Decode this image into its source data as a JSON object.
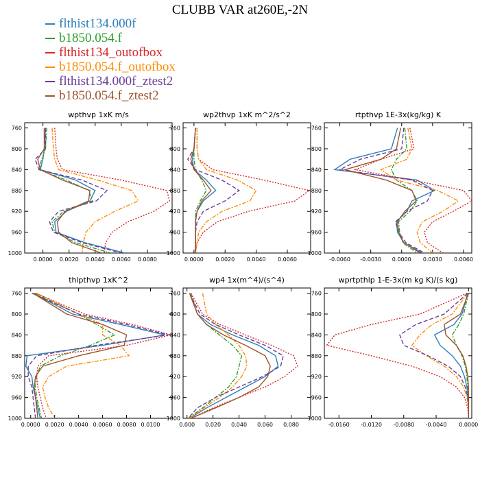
{
  "figure": {
    "title": "CLUBB VAR at260E,-2N",
    "legend": [
      {
        "label": "flthist134.000f",
        "color": "#2f7fb8",
        "dash": "solid"
      },
      {
        "label": "b1850.054.f",
        "color": "#2ca02c",
        "dash": "dashdot"
      },
      {
        "label": "flthist134_outofbox",
        "color": "#d62728",
        "dash": "dotted"
      },
      {
        "label": "b1850.054.f_outofbox",
        "color": "#ff8c00",
        "dash": "dashdot"
      },
      {
        "label": "flthist134.000f_ztest2",
        "color": "#6a3d9a",
        "dash": "dashed"
      },
      {
        "label": "b1850.054.f_ztest2",
        "color": "#a0522d",
        "dash": "solid"
      }
    ]
  },
  "chart_data": [
    {
      "type": "line",
      "title": "wpthvp  1xK m/s",
      "ylim": [
        1000,
        750
      ],
      "yticks": [
        "760",
        "800",
        "840",
        "880",
        "920",
        "960",
        "1000"
      ],
      "xlim": [
        -0.0014,
        0.0099
      ],
      "xticks": [
        "0.0000",
        "0.0020",
        "0.0040",
        "0.0060",
        "0.0080"
      ],
      "pressure": [
        760,
        800,
        820,
        840,
        860,
        880,
        900,
        920,
        940,
        960,
        980,
        1000
      ],
      "series": [
        {
          "name": "flthist134.000f",
          "values": [
            0.0002,
            0.0001,
            0.0,
            -0.0002,
            0.0025,
            0.004,
            0.0036,
            0.0018,
            0.0009,
            0.001,
            0.0032,
            0.0063
          ]
        },
        {
          "name": "b1850.054.f",
          "values": [
            0.0003,
            0.0002,
            -0.0001,
            -0.0003,
            0.0018,
            0.0035,
            0.0038,
            0.0016,
            0.0007,
            0.0009,
            0.0025,
            0.0052
          ]
        },
        {
          "name": "flthist134_outofbox",
          "values": [
            0.0009,
            0.001,
            0.0011,
            0.0015,
            0.006,
            0.0095,
            0.0097,
            0.0085,
            0.0065,
            0.0053,
            0.0048,
            0.0047
          ]
        },
        {
          "name": "b1850.054.f_outofbox",
          "values": [
            0.0007,
            0.0008,
            0.0009,
            0.0012,
            0.0042,
            0.0068,
            0.0073,
            0.0055,
            0.004,
            0.0033,
            0.0031,
            0.003
          ]
        },
        {
          "name": "flthist134.000f_ztest2",
          "values": [
            0.0002,
            0.0002,
            -0.0006,
            -0.0003,
            0.003,
            0.0049,
            0.0041,
            0.0012,
            0.0005,
            0.0008,
            0.003,
            0.006
          ]
        },
        {
          "name": "b1850.054.f_ztest2",
          "values": [
            0.0001,
            0.0001,
            -0.0004,
            -0.0002,
            0.0015,
            0.0036,
            0.0035,
            0.0017,
            0.0011,
            0.0012,
            0.0022,
            0.0045
          ]
        }
      ]
    },
    {
      "type": "line",
      "title": "wp2thvp  1xK m^2/s^2",
      "ylim": [
        1000,
        750
      ],
      "yticks": [
        "760",
        "800",
        "840",
        "880",
        "920",
        "960",
        "1000"
      ],
      "xlim": [
        -0.0007,
        0.0075
      ],
      "xticks": [
        "0.0000",
        "0.0020",
        "0.0040",
        "0.0060"
      ],
      "pressure": [
        760,
        800,
        820,
        840,
        860,
        880,
        900,
        920,
        940,
        960,
        980,
        1000
      ],
      "series": [
        {
          "name": "flthist134.000f",
          "values": [
            0.0001,
            0.0,
            -0.0001,
            0.0,
            0.0008,
            0.0014,
            0.0006,
            0.0002,
            0.0001,
            0.0001,
            0.0001,
            0.0001
          ]
        },
        {
          "name": "b1850.054.f",
          "values": [
            0.0001,
            0.0,
            0.0,
            0.0001,
            0.0005,
            0.0008,
            0.0004,
            0.0001,
            0.0001,
            0.0001,
            0.0001,
            0.0001
          ]
        },
        {
          "name": "flthist134_outofbox",
          "values": [
            0.0002,
            0.0002,
            0.0003,
            0.0012,
            0.0045,
            0.0074,
            0.0065,
            0.0035,
            0.0015,
            0.0006,
            0.0002,
            0.0001
          ]
        },
        {
          "name": "b1850.054.f_outofbox",
          "values": [
            0.0002,
            0.0002,
            0.0003,
            0.0008,
            0.0028,
            0.004,
            0.0036,
            0.0018,
            0.0008,
            0.0003,
            0.0002,
            0.0001
          ]
        },
        {
          "name": "flthist134.000f_ztest2",
          "values": [
            0.0001,
            0.0,
            -0.0004,
            0.0001,
            0.0018,
            0.0029,
            0.002,
            0.0006,
            0.0002,
            0.0001,
            0.0001,
            0.0001
          ]
        },
        {
          "name": "b1850.054.f_ztest2",
          "values": [
            0.0001,
            0.0,
            -0.0002,
            0.0,
            0.0006,
            0.0011,
            0.0005,
            0.0002,
            0.0001,
            0.0001,
            0.0001,
            0.0001
          ]
        }
      ]
    },
    {
      "type": "line",
      "title": "rtpthvp  1E-3x(kg/kg) K",
      "ylim": [
        1000,
        750
      ],
      "yticks": [
        "760",
        "800",
        "840",
        "880",
        "920",
        "960",
        "1000"
      ],
      "xlim": [
        -0.0075,
        0.0068
      ],
      "xticks": [
        "-0.0060",
        "-0.0030",
        "0.0000",
        "0.0030",
        "0.0060"
      ],
      "pressure": [
        760,
        800,
        820,
        840,
        860,
        880,
        900,
        920,
        940,
        960,
        980,
        1000
      ],
      "series": [
        {
          "name": "flthist134.000f",
          "values": [
            -0.0004,
            -0.001,
            -0.005,
            -0.0065,
            0.0015,
            0.0032,
            0.001,
            0.0005,
            -0.0005,
            -0.0004,
            0.0002,
            0.002
          ]
        },
        {
          "name": "b1850.054.f",
          "values": [
            0.0003,
            0.0005,
            -0.0005,
            -0.001,
            -0.0005,
            0.001,
            0.0015,
            0.0008,
            -0.0003,
            -0.0002,
            0.0001,
            0.0015
          ]
        },
        {
          "name": "flthist134_outofbox",
          "values": [
            0.0008,
            0.0012,
            -0.002,
            -0.0045,
            0.001,
            0.006,
            0.0068,
            0.005,
            0.003,
            0.0022,
            0.0025,
            0.004
          ]
        },
        {
          "name": "b1850.054.f_outofbox",
          "values": [
            0.0006,
            0.001,
            0.0005,
            -0.002,
            -0.0005,
            0.0035,
            0.0055,
            0.004,
            0.002,
            0.0015,
            0.0018,
            0.003
          ]
        },
        {
          "name": "flthist134.000f_ztest2",
          "values": [
            0.0002,
            0.0,
            -0.004,
            -0.006,
            0.001,
            0.003,
            0.0025,
            0.0005,
            -0.0006,
            -0.0003,
            0.0004,
            0.0022
          ]
        },
        {
          "name": "b1850.054.f_ztest2",
          "values": [
            -0.0001,
            -0.0005,
            -0.002,
            -0.0055,
            -0.0015,
            0.001,
            0.0014,
            0.0003,
            -0.0004,
            -0.0003,
            0.0002,
            0.0018
          ]
        }
      ]
    },
    {
      "type": "line",
      "title": "thlpthvp  1xK^2",
      "ylim": [
        1000,
        750
      ],
      "yticks": [
        "760",
        "800",
        "840",
        "880",
        "920",
        "960",
        "1000"
      ],
      "xlim": [
        -0.0005,
        0.0118
      ],
      "xticks": [
        "0.0000",
        "0.0020",
        "0.0040",
        "0.0060",
        "0.0080",
        "0.0100"
      ],
      "pressure": [
        760,
        800,
        820,
        840,
        860,
        880,
        900,
        920,
        940,
        960,
        980,
        1000
      ],
      "series": [
        {
          "name": "flthist134.000f",
          "values": [
            0.0002,
            0.0035,
            0.0075,
            0.0112,
            0.006,
            -0.0003,
            -0.0004,
            0.0001,
            0.0002,
            0.0004,
            0.0006,
            0.0008
          ]
        },
        {
          "name": "b1850.054.f",
          "values": [
            0.0003,
            0.004,
            0.0055,
            0.007,
            0.005,
            0.0025,
            0.0008,
            0.0005,
            0.0004,
            0.0005,
            0.0007,
            0.0009
          ]
        },
        {
          "name": "flthist134_outofbox",
          "values": [
            0.0004,
            0.0045,
            0.0085,
            0.0117,
            0.008,
            0.0015,
            0.0006,
            0.0005,
            0.0006,
            0.0008,
            0.001,
            0.0013
          ]
        },
        {
          "name": "b1850.054.f_outofbox",
          "values": [
            0.0005,
            0.004,
            0.006,
            0.006,
            0.0075,
            0.0082,
            0.003,
            0.0015,
            0.001,
            0.0012,
            0.0015,
            0.002
          ]
        },
        {
          "name": "flthist134.000f_ztest2",
          "values": [
            0.0001,
            0.004,
            0.008,
            0.0115,
            0.0055,
            0.0005,
            -0.0002,
            -0.0002,
            0.0001,
            0.0002,
            0.0003,
            0.0004
          ]
        },
        {
          "name": "b1850.054.f_ztest2",
          "values": [
            0.0002,
            0.003,
            0.006,
            0.008,
            0.0078,
            0.004,
            0.001,
            0.0004,
            0.0003,
            0.0004,
            0.0005,
            0.0006
          ]
        }
      ]
    },
    {
      "type": "line",
      "title": "wp4  1x(m^4)/(s^4)",
      "ylim": [
        1000,
        750
      ],
      "yticks": [
        "760",
        "800",
        "840",
        "880",
        "920",
        "960",
        "1000"
      ],
      "xlim": [
        -0.003,
        0.095
      ],
      "xticks": [
        "0.000",
        "0.020",
        "0.040",
        "0.060",
        "0.080"
      ],
      "pressure": [
        760,
        800,
        820,
        840,
        860,
        880,
        900,
        920,
        940,
        960,
        980,
        1000
      ],
      "series": [
        {
          "name": "flthist134.000f",
          "values": [
            0.002,
            0.008,
            0.018,
            0.035,
            0.055,
            0.068,
            0.07,
            0.06,
            0.045,
            0.03,
            0.015,
            0.002
          ]
        },
        {
          "name": "b1850.054.f",
          "values": [
            0.003,
            0.008,
            0.015,
            0.025,
            0.035,
            0.042,
            0.04,
            0.038,
            0.032,
            0.022,
            0.012,
            0.001
          ]
        },
        {
          "name": "flthist134_outofbox",
          "values": [
            0.003,
            0.012,
            0.025,
            0.045,
            0.065,
            0.082,
            0.085,
            0.075,
            0.06,
            0.04,
            0.02,
            0.003
          ]
        },
        {
          "name": "b1850.054.f_outofbox",
          "values": [
            0.012,
            0.015,
            0.022,
            0.032,
            0.04,
            0.045,
            0.046,
            0.042,
            0.035,
            0.025,
            0.013,
            0.002
          ]
        },
        {
          "name": "flthist134.000f_ztest2",
          "values": [
            0.002,
            0.01,
            0.022,
            0.04,
            0.06,
            0.074,
            0.072,
            0.058,
            0.04,
            0.022,
            0.008,
            0.001
          ]
        },
        {
          "name": "b1850.054.f_ztest2",
          "values": [
            0.002,
            0.008,
            0.015,
            0.028,
            0.045,
            0.06,
            0.064,
            0.062,
            0.055,
            0.04,
            0.022,
            0.003
          ]
        }
      ]
    },
    {
      "type": "line",
      "title": "wprtpthlp  1-E-3x(m kg K)/(s kg)",
      "ylim": [
        1000,
        750
      ],
      "yticks": [
        "760",
        "800",
        "840",
        "880",
        "920",
        "960",
        "1000"
      ],
      "xlim": [
        -0.0178,
        0.0004
      ],
      "xticks": [
        "-0.0160",
        "-0.0120",
        "-0.0080",
        "-0.0040",
        "0.0000"
      ],
      "pressure": [
        760,
        800,
        820,
        840,
        860,
        880,
        900,
        920,
        940,
        960,
        980,
        1000
      ],
      "series": [
        {
          "name": "flthist134.000f",
          "values": [
            -0.0001,
            -0.0008,
            -0.0018,
            -0.0042,
            -0.0035,
            -0.002,
            -0.001,
            -0.0005,
            -0.0002,
            -0.0001,
            0.0,
            0.0
          ]
        },
        {
          "name": "b1850.054.f",
          "values": [
            0.0,
            -0.0006,
            -0.0012,
            -0.002,
            -0.0015,
            -0.0008,
            -0.0004,
            -0.0002,
            -0.0001,
            0.0,
            0.0,
            0.0
          ]
        },
        {
          "name": "flthist134_outofbox",
          "values": [
            -0.0002,
            -0.006,
            -0.012,
            -0.0165,
            -0.0175,
            -0.012,
            -0.007,
            -0.0035,
            -0.0015,
            -0.0005,
            -0.0001,
            0.0
          ]
        },
        {
          "name": "b1850.054.f_outofbox",
          "values": [
            -0.0001,
            -0.002,
            -0.0045,
            -0.006,
            -0.007,
            -0.0052,
            -0.003,
            -0.0015,
            -0.0006,
            -0.0002,
            0.0,
            0.0
          ]
        },
        {
          "name": "flthist134.000f_ztest2",
          "values": [
            -0.0001,
            -0.003,
            -0.0065,
            -0.0085,
            -0.008,
            -0.005,
            -0.0025,
            -0.001,
            -0.0004,
            -0.0001,
            0.0,
            0.0
          ]
        },
        {
          "name": "b1850.054.f_ztest2",
          "values": [
            0.0,
            -0.001,
            -0.003,
            -0.0028,
            -0.0015,
            -0.0007,
            -0.0003,
            -0.0001,
            0.0,
            0.0,
            0.0,
            0.0
          ]
        }
      ]
    }
  ]
}
